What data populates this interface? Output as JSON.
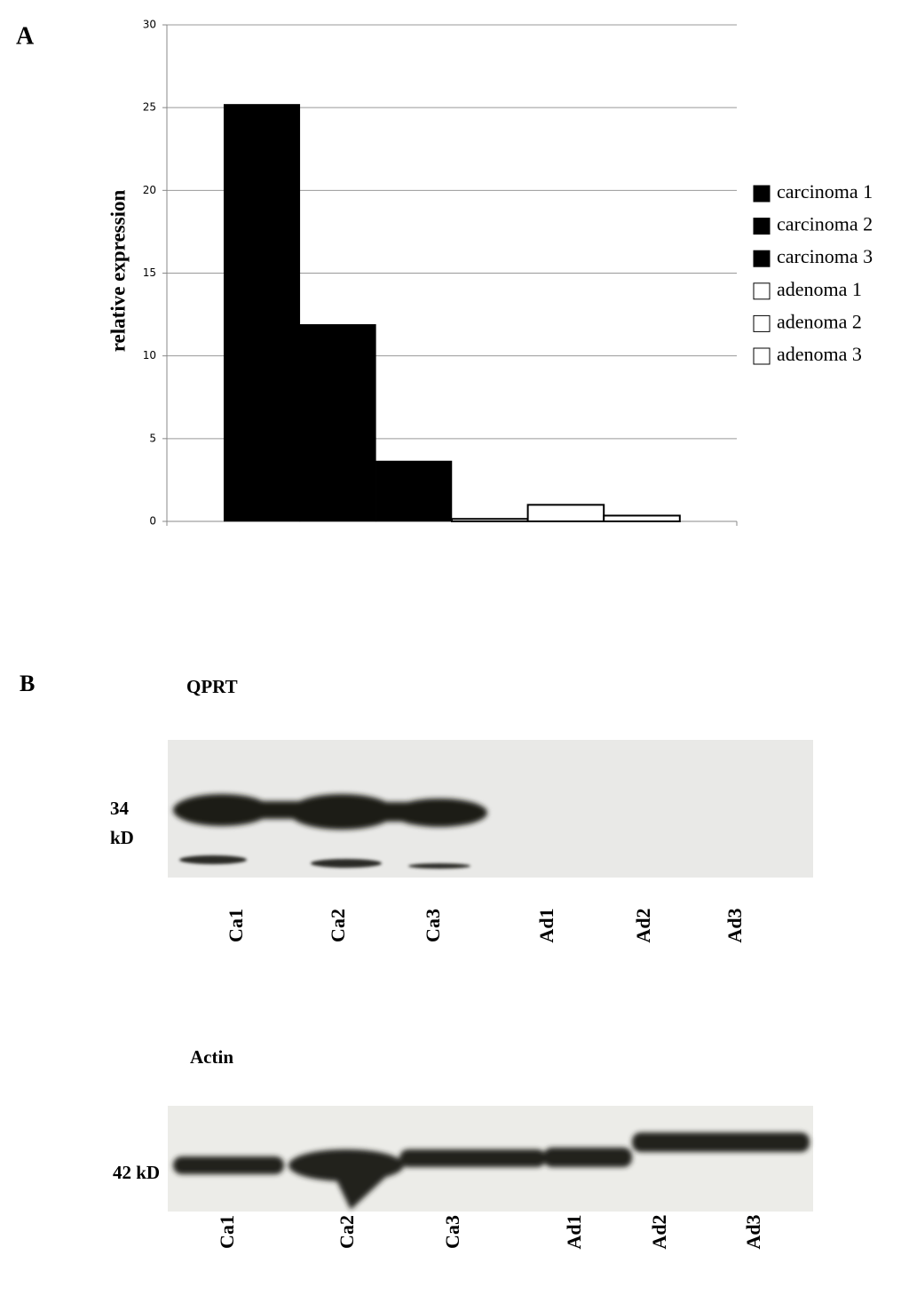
{
  "panel_a_label": "A",
  "chart_data": {
    "type": "bar",
    "y_label": "relative expression",
    "categories": [
      null
    ],
    "series": [
      {
        "name": "carcinoma 1",
        "color": "#000000",
        "values": [
          25.2
        ]
      },
      {
        "name": "carcinoma 2",
        "color": "#000000",
        "values": [
          11.9
        ]
      },
      {
        "name": "carcinoma 3",
        "color": "#000000",
        "values": [
          3.65
        ]
      },
      {
        "name": "adenoma 1",
        "color": "#ffffff",
        "values": [
          0.15
        ]
      },
      {
        "name": "adenoma 2",
        "color": "#ffffff",
        "values": [
          1.0
        ]
      },
      {
        "name": "adenoma 3",
        "color": "#ffffff",
        "values": [
          0.35
        ]
      }
    ],
    "ylim": [
      0,
      30
    ],
    "yticks": [
      0,
      5,
      10,
      15,
      20,
      25,
      30
    ],
    "grid": true,
    "legend": "right"
  },
  "panel_b": {
    "label": "B",
    "qprt": {
      "title": "QPRT",
      "marker": [
        "34",
        "kD"
      ],
      "lanes": [
        "Ca1",
        "Ca2",
        "Ca3",
        "Ad1",
        "Ad2",
        "Ad3"
      ]
    },
    "actin": {
      "title": "Actin",
      "marker": [
        "42 kD"
      ],
      "lanes": [
        "Ca1",
        "Ca2",
        "Ca3",
        "Ad1",
        "Ad2",
        "Ad3"
      ]
    }
  }
}
